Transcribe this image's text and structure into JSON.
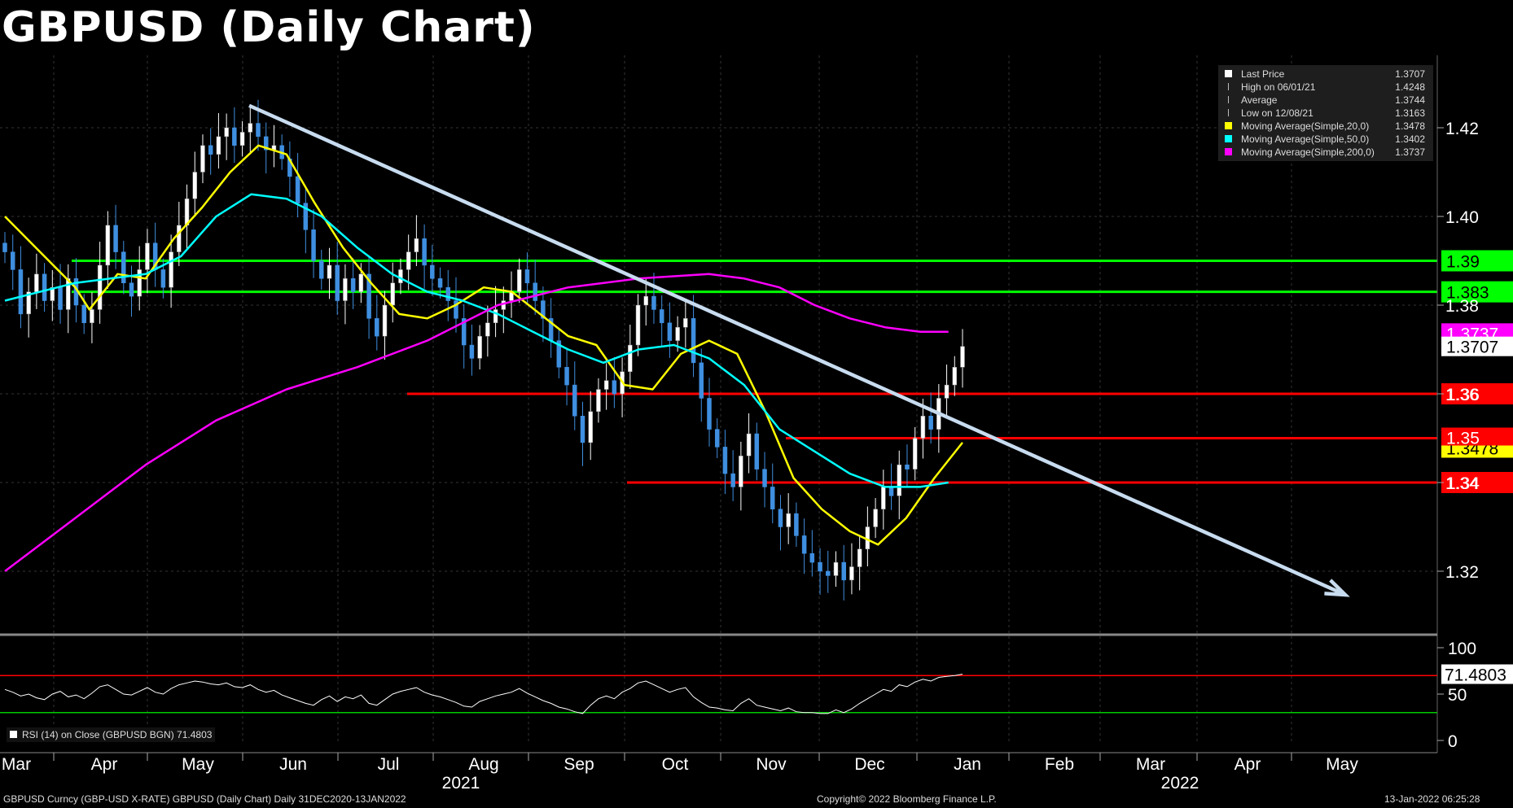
{
  "title": "GBPUSD (Daily Chart)",
  "footer": {
    "left": "GBPUSD Curncy (GBP-USD X-RATE) GBPUSD (Daily Chart)  Daily 31DEC2020-13JAN2022",
    "center": "Copyright© 2022 Bloomberg Finance L.P.",
    "right": "13-Jan-2022 06:25:28"
  },
  "legend": [
    {
      "label": "Last Price",
      "value": "1.3707",
      "color": "#ffffff",
      "marker": "square"
    },
    {
      "label": "High on 06/01/21",
      "value": "1.4248",
      "color": "#bbbbbb",
      "marker": "high"
    },
    {
      "label": "Average",
      "value": "1.3744",
      "color": "#bbbbbb",
      "marker": "avg"
    },
    {
      "label": "Low on 12/08/21",
      "value": "1.3163",
      "color": "#bbbbbb",
      "marker": "low"
    },
    {
      "label": "Moving Average(Simple,20,0)",
      "value": "1.3478",
      "color": "#ffff00",
      "marker": "square"
    },
    {
      "label": "Moving Average(Simple,50,0)",
      "value": "1.3402",
      "color": "#00ffff",
      "marker": "square"
    },
    {
      "label": "Moving Average(Simple,200,0)",
      "value": "1.3737",
      "color": "#ff00ff",
      "marker": "square"
    }
  ],
  "rsi_label": "RSI (14)  on Close (GBPUSD BGN) 71.4803",
  "chart_data": {
    "type": "candlestick",
    "x_axis": {
      "months": [
        "Mar",
        "Apr",
        "May",
        "Jun",
        "Jul",
        "Aug",
        "Sep",
        "Oct",
        "Nov",
        "Dec",
        "Jan",
        "Feb",
        "Mar",
        "Apr",
        "May"
      ],
      "years": [
        "2021",
        "2022"
      ]
    },
    "y_axis": {
      "ticks": [
        "1.42",
        "1.40",
        "1.38",
        "1.36",
        "1.34",
        "1.32"
      ],
      "range": [
        1.306,
        1.438
      ]
    },
    "close_series_approx": [
      1.392,
      1.388,
      1.378,
      1.383,
      1.387,
      1.381,
      1.384,
      1.379,
      1.386,
      1.38,
      1.376,
      1.379,
      1.389,
      1.398,
      1.392,
      1.385,
      1.382,
      1.388,
      1.394,
      1.388,
      1.384,
      1.392,
      1.398,
      1.404,
      1.41,
      1.416,
      1.414,
      1.418,
      1.42,
      1.416,
      1.419,
      1.421,
      1.418,
      1.415,
      1.416,
      1.413,
      1.409,
      1.403,
      1.397,
      1.39,
      1.386,
      1.389,
      1.381,
      1.386,
      1.383,
      1.387,
      1.377,
      1.373,
      1.38,
      1.385,
      1.388,
      1.392,
      1.395,
      1.389,
      1.386,
      1.384,
      1.381,
      1.377,
      1.371,
      1.368,
      1.373,
      1.376,
      1.379,
      1.381,
      1.383,
      1.388,
      1.385,
      1.381,
      1.377,
      1.372,
      1.366,
      1.362,
      1.355,
      1.349,
      1.356,
      1.361,
      1.363,
      1.36,
      1.365,
      1.371,
      1.38,
      1.382,
      1.379,
      1.376,
      1.372,
      1.375,
      1.377,
      1.367,
      1.359,
      1.352,
      1.348,
      1.342,
      1.339,
      1.346,
      1.351,
      1.343,
      1.339,
      1.334,
      1.33,
      1.333,
      1.328,
      1.324,
      1.322,
      1.32,
      1.319,
      1.322,
      1.318,
      1.321,
      1.325,
      1.33,
      1.334,
      1.339,
      1.337,
      1.344,
      1.343,
      1.35,
      1.355,
      1.352,
      1.359,
      1.362,
      1.366,
      1.3707
    ],
    "moving_averages": [
      {
        "name": "Moving Average(Simple,20,0)",
        "color": "#ffff00",
        "points": [
          [
            0,
            1.4
          ],
          [
            5,
            1.392
          ],
          [
            10,
            1.384
          ],
          [
            12,
            1.379
          ],
          [
            16,
            1.387
          ],
          [
            20,
            1.386
          ],
          [
            24,
            1.395
          ],
          [
            28,
            1.402
          ],
          [
            32,
            1.41
          ],
          [
            36,
            1.416
          ],
          [
            40,
            1.414
          ],
          [
            44,
            1.403
          ],
          [
            48,
            1.393
          ],
          [
            52,
            1.385
          ],
          [
            56,
            1.378
          ],
          [
            60,
            1.377
          ],
          [
            64,
            1.38
          ],
          [
            68,
            1.384
          ],
          [
            72,
            1.383
          ],
          [
            76,
            1.378
          ],
          [
            80,
            1.373
          ],
          [
            84,
            1.371
          ],
          [
            88,
            1.362
          ],
          [
            92,
            1.361
          ],
          [
            96,
            1.369
          ],
          [
            100,
            1.372
          ],
          [
            104,
            1.369
          ],
          [
            108,
            1.356
          ],
          [
            112,
            1.341
          ],
          [
            116,
            1.334
          ],
          [
            120,
            1.329
          ],
          [
            124,
            1.326
          ],
          [
            128,
            1.332
          ],
          [
            132,
            1.341
          ],
          [
            136,
            1.349
          ]
        ]
      },
      {
        "name": "Moving Average(Simple,50,0)",
        "color": "#00ffff",
        "points": [
          [
            0,
            1.381
          ],
          [
            5,
            1.383
          ],
          [
            10,
            1.385
          ],
          [
            15,
            1.386
          ],
          [
            20,
            1.387
          ],
          [
            25,
            1.391
          ],
          [
            30,
            1.4
          ],
          [
            35,
            1.405
          ],
          [
            40,
            1.404
          ],
          [
            45,
            1.4
          ],
          [
            50,
            1.393
          ],
          [
            55,
            1.387
          ],
          [
            60,
            1.383
          ],
          [
            65,
            1.381
          ],
          [
            70,
            1.378
          ],
          [
            75,
            1.374
          ],
          [
            80,
            1.37
          ],
          [
            85,
            1.367
          ],
          [
            90,
            1.37
          ],
          [
            95,
            1.371
          ],
          [
            100,
            1.368
          ],
          [
            105,
            1.362
          ],
          [
            110,
            1.352
          ],
          [
            115,
            1.347
          ],
          [
            120,
            1.342
          ],
          [
            125,
            1.339
          ],
          [
            130,
            1.339
          ],
          [
            134,
            1.34
          ]
        ]
      },
      {
        "name": "Moving Average(Simple,200,0)",
        "color": "#ff00ff",
        "points": [
          [
            0,
            1.32
          ],
          [
            10,
            1.332
          ],
          [
            20,
            1.344
          ],
          [
            30,
            1.354
          ],
          [
            40,
            1.361
          ],
          [
            50,
            1.366
          ],
          [
            60,
            1.372
          ],
          [
            70,
            1.38
          ],
          [
            80,
            1.384
          ],
          [
            90,
            1.386
          ],
          [
            100,
            1.387
          ],
          [
            105,
            1.386
          ],
          [
            110,
            1.384
          ],
          [
            115,
            1.38
          ],
          [
            120,
            1.377
          ],
          [
            125,
            1.375
          ],
          [
            130,
            1.374
          ],
          [
            134,
            1.374
          ]
        ]
      }
    ],
    "trendline": {
      "from": [
        "2021-06-01",
        1.425
      ],
      "to": [
        "2022-05-01",
        1.31
      ],
      "color": "#c8dcf0"
    },
    "horizontal_levels": [
      {
        "label": "1.39",
        "value": 1.39,
        "color": "#00ff00"
      },
      {
        "label": "1.383",
        "value": 1.383,
        "color": "#00ff00"
      },
      {
        "label": "1.36",
        "value": 1.36,
        "color": "#ff0000"
      },
      {
        "label": "1.35",
        "value": 1.35,
        "color": "#ff0000"
      },
      {
        "label": "1.34",
        "value": 1.34,
        "color": "#ff0000"
      }
    ],
    "price_flags": [
      {
        "label": "1.3737",
        "value": 1.3737,
        "bg": "#ff00ff",
        "fg": "#ffffff"
      },
      {
        "label": "1.3707",
        "value": 1.3707,
        "bg": "#ffffff",
        "fg": "#000000"
      },
      {
        "label": "1.3478",
        "value": 1.3478,
        "bg": "#ffff00",
        "fg": "#000000"
      }
    ],
    "rsi": {
      "ticks": [
        "100",
        "50",
        "0"
      ],
      "overbought": 70,
      "oversold": 30,
      "last_label": "71.4803",
      "values": [
        55,
        52,
        48,
        50,
        46,
        44,
        50,
        53,
        47,
        49,
        45,
        51,
        58,
        60,
        55,
        50,
        49,
        53,
        57,
        52,
        50,
        56,
        60,
        62,
        64,
        63,
        61,
        60,
        62,
        58,
        57,
        60,
        55,
        52,
        54,
        49,
        46,
        43,
        40,
        38,
        44,
        48,
        42,
        47,
        45,
        49,
        40,
        38,
        44,
        50,
        53,
        55,
        57,
        52,
        49,
        47,
        44,
        41,
        37,
        36,
        42,
        45,
        48,
        50,
        52,
        56,
        51,
        47,
        43,
        40,
        36,
        34,
        31,
        29,
        38,
        45,
        48,
        45,
        52,
        56,
        62,
        64,
        60,
        56,
        52,
        55,
        57,
        47,
        41,
        36,
        35,
        33,
        32,
        40,
        45,
        38,
        36,
        34,
        32,
        35,
        31,
        30,
        30,
        29,
        29,
        33,
        30,
        34,
        40,
        45,
        50,
        55,
        53,
        60,
        58,
        63,
        66,
        64,
        68,
        69,
        70,
        71.5
      ]
    }
  }
}
